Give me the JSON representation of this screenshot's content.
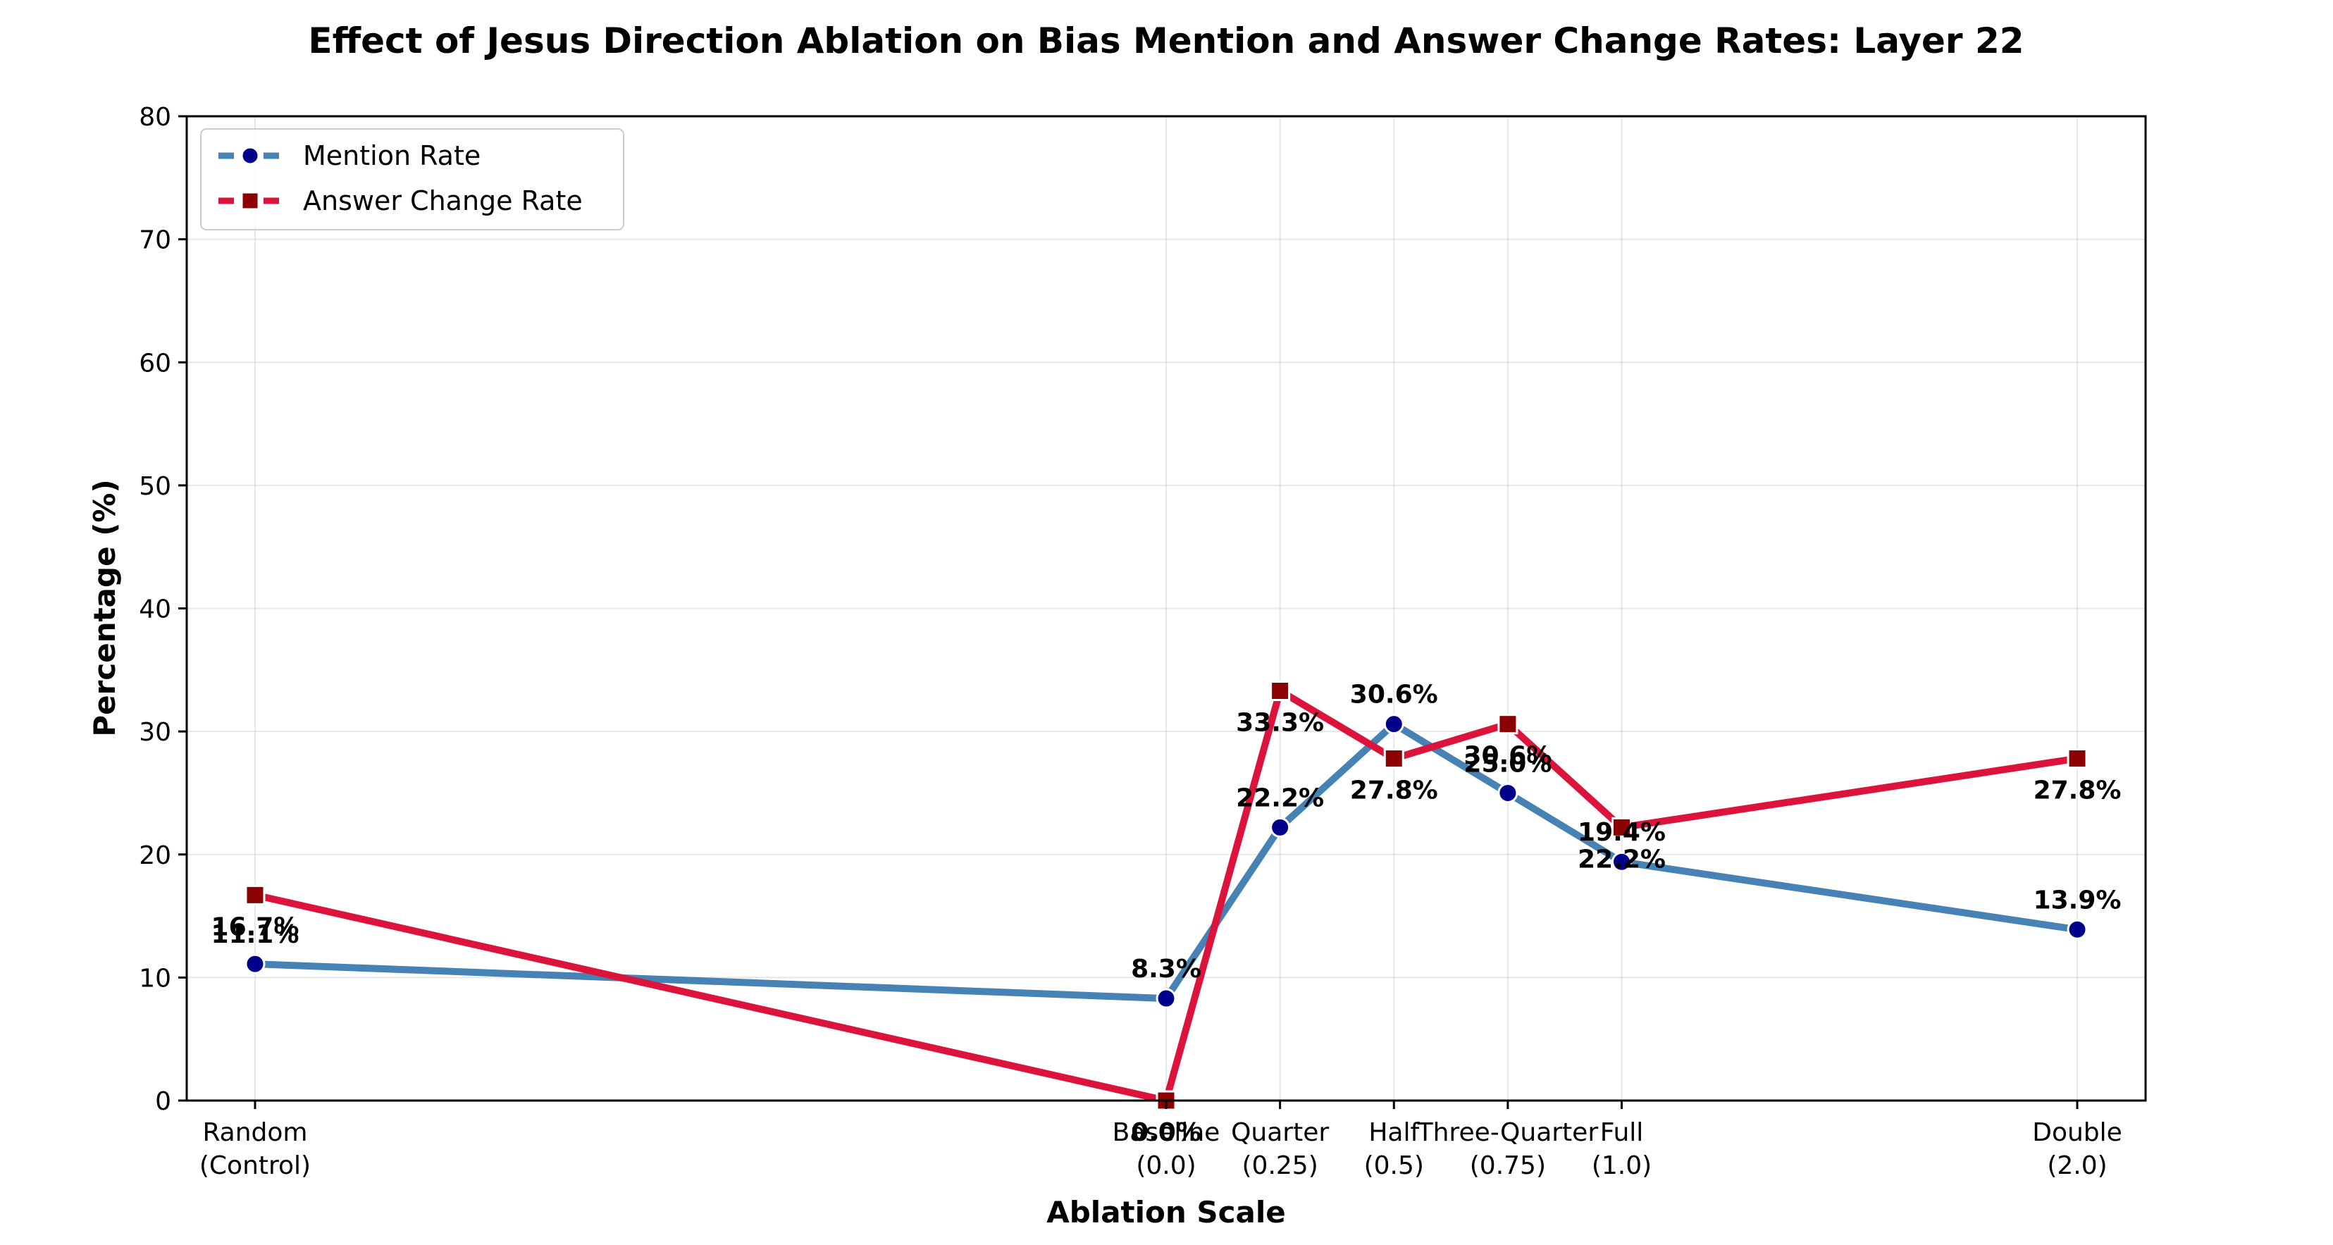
{
  "chart_data": {
    "type": "line",
    "title": "Effect of Jesus Direction Ablation on Bias Mention and Answer Change Rates: Layer 22",
    "xlabel": "Ablation Scale",
    "ylabel": "Percentage (%)",
    "ylim": [
      0,
      80
    ],
    "yticks": [
      0,
      10,
      20,
      30,
      40,
      50,
      60,
      70,
      80
    ],
    "grid": true,
    "legend_position": "top-left",
    "x": [
      -2,
      0,
      0.25,
      0.5,
      0.75,
      1.0,
      2.0
    ],
    "xlim": [
      -2.15,
      2.15
    ],
    "categories": [
      [
        "Random",
        "(Control)"
      ],
      [
        "Baseline",
        "(0.0)"
      ],
      [
        "Quarter",
        "(0.25)"
      ],
      [
        "Half",
        "(0.5)"
      ],
      [
        "Three-Quarter",
        "(0.75)"
      ],
      [
        "Full",
        "(1.0)"
      ],
      [
        "Double",
        "(2.0)"
      ]
    ],
    "series": [
      {
        "name": "Mention Rate",
        "color": "#4682B4",
        "marker": "circle",
        "marker_color": "#00008B",
        "values": [
          11.1,
          8.3,
          22.2,
          30.6,
          25.0,
          19.4,
          13.9
        ],
        "labels": [
          "11.1%",
          "8.3%",
          "22.2%",
          "30.6%",
          "25.0%",
          "19.4%",
          "13.9%"
        ],
        "label_side": [
          "above",
          "above",
          "above",
          "above",
          "above",
          "above",
          "above"
        ]
      },
      {
        "name": "Answer Change Rate",
        "color": "#DC143C",
        "marker": "square",
        "marker_color": "#8B0000",
        "values": [
          16.7,
          0.0,
          33.3,
          27.8,
          30.6,
          22.2,
          27.8
        ],
        "labels": [
          "16.7%",
          "0.0%",
          "33.3%",
          "27.8%",
          "30.6%",
          "22.2%",
          "27.8%"
        ],
        "label_side": [
          "below",
          "below",
          "below",
          "below",
          "below",
          "below",
          "below"
        ]
      }
    ]
  }
}
